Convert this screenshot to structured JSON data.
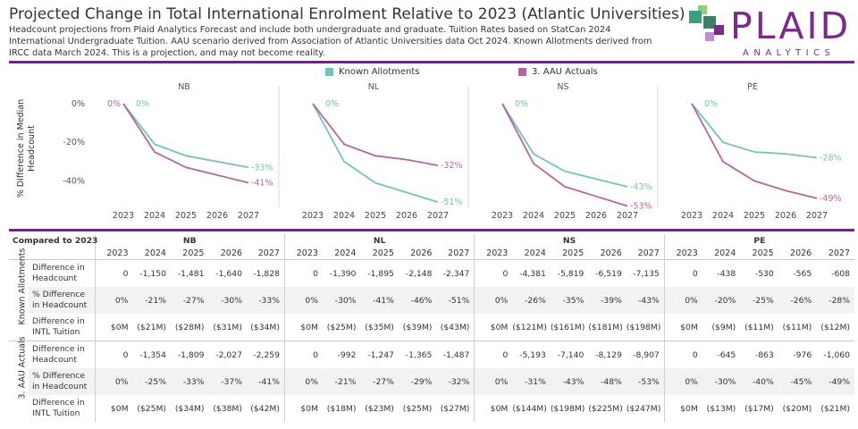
{
  "header": {
    "title": "Projected Change in Total International Enrolment Relative to 2023 (Atlantic Universities)",
    "subtitle": "Headcount projections from Plaid Analytics Forecast and include both undergraduate and graduate. Tuition Rates based on StatCan 2024 International Undergraduate Tuition. AAU scenario derived from Association of Atlantic Universities data Oct 2024. Known Allotments derived from IRCC data March 2024. This is a projection, and may not become reality."
  },
  "logo": {
    "name": "PLAID",
    "tag": "ANALYTICS",
    "colors": [
      "#3aa17a",
      "#8fce7a",
      "#7a2a87",
      "#c58bd1"
    ]
  },
  "chart_data": {
    "type": "line",
    "ylabel": "% Difference in Median Headcount",
    "ylim": [
      -50,
      0
    ],
    "yticks": [
      0,
      -20,
      -40
    ],
    "ytick_labels": [
      "0%",
      "-20%",
      "-40%"
    ],
    "x": [
      2023,
      2024,
      2025,
      2026,
      2027
    ],
    "legend": [
      {
        "name": "Known Allotments",
        "color": "#76c1b8"
      },
      {
        "name": "3. AAU Actuals",
        "color": "#b3679e"
      }
    ],
    "legend_placement": "top-center",
    "panels": [
      {
        "name": "NB",
        "series": [
          {
            "name": "Known Allotments",
            "values": [
              0,
              -21,
              -27,
              -30,
              -33
            ],
            "start_label": "0%",
            "end_label": "-33%"
          },
          {
            "name": "3. AAU Actuals",
            "values": [
              0,
              -25,
              -33,
              -37,
              -41
            ],
            "start_label": "0%",
            "end_label": "-41%"
          }
        ]
      },
      {
        "name": "NL",
        "series": [
          {
            "name": "Known Allotments",
            "values": [
              0,
              -30,
              -41,
              -46,
              -51
            ],
            "start_label": "0%",
            "end_label": "-51%"
          },
          {
            "name": "3. AAU Actuals",
            "values": [
              0,
              -21,
              -27,
              -29,
              -32
            ],
            "start_label": "",
            "end_label": "-32%"
          }
        ]
      },
      {
        "name": "NS",
        "series": [
          {
            "name": "Known Allotments",
            "values": [
              0,
              -26,
              -35,
              -39,
              -43
            ],
            "start_label": "0%",
            "end_label": "-43%"
          },
          {
            "name": "3. AAU Actuals",
            "values": [
              0,
              -31,
              -43,
              -48,
              -53
            ],
            "start_label": "",
            "end_label": "-53%"
          }
        ]
      },
      {
        "name": "PE",
        "series": [
          {
            "name": "Known Allotments",
            "values": [
              0,
              -20,
              -25,
              -26,
              -28
            ],
            "start_label": "0%",
            "end_label": "-28%"
          },
          {
            "name": "3. AAU Actuals",
            "values": [
              0,
              -30,
              -40,
              -45,
              -49
            ],
            "start_label": "",
            "end_label": "-49%"
          }
        ]
      }
    ]
  },
  "table": {
    "corner_label": "Compared to 2023",
    "states": [
      "NB",
      "NL",
      "NS",
      "PE"
    ],
    "years": [
      "2023",
      "2024",
      "2025",
      "2026",
      "2027"
    ],
    "groups": [
      {
        "name": "Known Allotments",
        "rows": [
          {
            "metric": "Difference in Headcount",
            "values": [
              [
                "0",
                "-1,150",
                "-1,481",
                "-1,640",
                "-1,828"
              ],
              [
                "0",
                "-1,390",
                "-1,895",
                "-2,148",
                "-2,347"
              ],
              [
                "0",
                "-4,381",
                "-5,819",
                "-6,519",
                "-7,135"
              ],
              [
                "0",
                "-438",
                "-530",
                "-565",
                "-608"
              ]
            ]
          },
          {
            "metric": "% Difference in Headcount",
            "values": [
              [
                "0%",
                "-21%",
                "-27%",
                "-30%",
                "-33%"
              ],
              [
                "0%",
                "-30%",
                "-41%",
                "-46%",
                "-51%"
              ],
              [
                "0%",
                "-26%",
                "-35%",
                "-39%",
                "-43%"
              ],
              [
                "0%",
                "-20%",
                "-25%",
                "-26%",
                "-28%"
              ]
            ]
          },
          {
            "metric": "Difference in INTL Tuition",
            "values": [
              [
                "$0M",
                "($21M)",
                "($28M)",
                "($31M)",
                "($34M)"
              ],
              [
                "$0M",
                "($25M)",
                "($35M)",
                "($39M)",
                "($43M)"
              ],
              [
                "$0M",
                "($121M)",
                "($161M)",
                "($181M)",
                "($198M)"
              ],
              [
                "$0M",
                "($9M)",
                "($11M)",
                "($11M)",
                "($12M)"
              ]
            ]
          }
        ]
      },
      {
        "name": "3. AAU Actuals",
        "rows": [
          {
            "metric": "Difference in Headcount",
            "values": [
              [
                "0",
                "-1,354",
                "-1,809",
                "-2,027",
                "-2,259"
              ],
              [
                "0",
                "-992",
                "-1,247",
                "-1,365",
                "-1,487"
              ],
              [
                "0",
                "-5,193",
                "-7,140",
                "-8,129",
                "-8,907"
              ],
              [
                "0",
                "-645",
                "-863",
                "-976",
                "-1,060"
              ]
            ]
          },
          {
            "metric": "% Difference in Headcount",
            "values": [
              [
                "0%",
                "-25%",
                "-33%",
                "-37%",
                "-41%"
              ],
              [
                "0%",
                "-21%",
                "-27%",
                "-29%",
                "-32%"
              ],
              [
                "0%",
                "-31%",
                "-43%",
                "-48%",
                "-53%"
              ],
              [
                "0%",
                "-30%",
                "-40%",
                "-45%",
                "-49%"
              ]
            ]
          },
          {
            "metric": "Difference in INTL Tuition",
            "values": [
              [
                "$0M",
                "($25M)",
                "($34M)",
                "($38M)",
                "($42M)"
              ],
              [
                "$0M",
                "($18M)",
                "($23M)",
                "($25M)",
                "($27M)"
              ],
              [
                "$0M",
                "($144M)",
                "($198M)",
                "($225M)",
                "($247M)"
              ],
              [
                "$0M",
                "($13M)",
                "($17M)",
                "($20M)",
                "($21M)"
              ]
            ]
          }
        ]
      }
    ]
  }
}
